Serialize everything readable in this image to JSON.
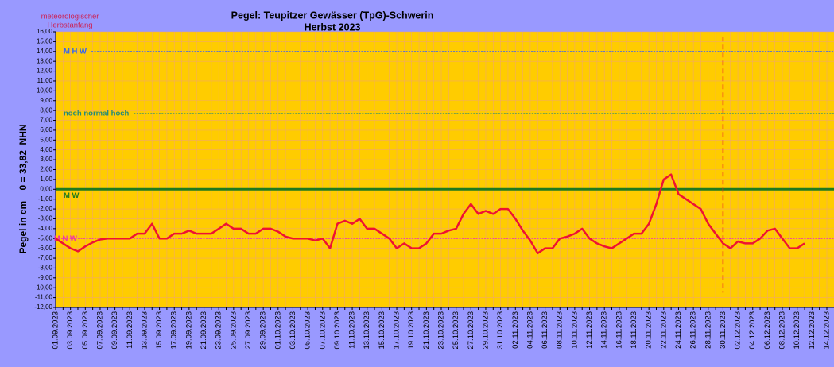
{
  "chart_data": {
    "type": "line",
    "title": "Pegel: Teupitzer Gewässer (TpG)-Schwerin",
    "subtitle": "Herbst 2023",
    "annotation": [
      "meteorologischer",
      "Herbstanfang"
    ],
    "y_label": "Pegel in cm    0 = 33,82  NHN",
    "categories": [
      "01.09.2023",
      null,
      "03.09.2023",
      null,
      "05.09.2023",
      null,
      "07.09.2023",
      null,
      "09.09.2023",
      null,
      "11.09.2023",
      null,
      "13.09.2023",
      null,
      "15.09.2023",
      null,
      "17.09.2023",
      null,
      "19.09.2023",
      null,
      "21.09.2023",
      null,
      "23.09.2023",
      null,
      "25.09.2023",
      null,
      "27.09.2023",
      null,
      "29.09.2023",
      null,
      "01.10.2023",
      null,
      "03.10.2023",
      null,
      "05.10.2023",
      null,
      "07.10.2023",
      null,
      "09.10.2023",
      null,
      "11.10.2023",
      null,
      "13.10.2023",
      null,
      "15.10.2023",
      null,
      "17.10.2023",
      null,
      "19.10.2023",
      null,
      "21.10.2023",
      null,
      "23.10.2023",
      null,
      "25.10.2023",
      null,
      "27.10.2023",
      null,
      "29.10.2023",
      null,
      "31.10.2023",
      null,
      "02.11.2023",
      null,
      "04.11.2023",
      null,
      "06.11.2023",
      null,
      "08.11.2023",
      null,
      "10.11.2023",
      null,
      "12.11.2023",
      null,
      "14.11.2023",
      null,
      "16.11.2023",
      null,
      "18.11.2023",
      null,
      "20.11.2023",
      null,
      "22.11.2023",
      null,
      "24.11.2023",
      null,
      "26.11.2023",
      null,
      "28.11.2023",
      null,
      "30.11.2023",
      null,
      "02.12.2023",
      null,
      "04.12.2023",
      null,
      "06.12.2023",
      null,
      "08.12.2023",
      null,
      "10.12.2023",
      null,
      "12.12.2023",
      null,
      "14.12.2023"
    ],
    "series": [
      {
        "name": "Pegel",
        "color": "#ee1133",
        "values": [
          -5.0,
          -5.5,
          -6.0,
          -6.3,
          -5.8,
          -5.4,
          -5.1,
          -5.0,
          -5.0,
          -5.0,
          -5.0,
          -4.5,
          -4.5,
          -3.5,
          -5.0,
          -5.0,
          -4.5,
          -4.5,
          -4.2,
          -4.5,
          -4.5,
          -4.5,
          -4.0,
          -3.5,
          -4.0,
          -4.0,
          -4.5,
          -4.5,
          -4.0,
          -4.0,
          -4.3,
          -4.8,
          -5.0,
          -5.0,
          -5.0,
          -5.2,
          -5.0,
          -6.0,
          -3.5,
          -3.2,
          -3.5,
          -3.0,
          -4.0,
          -4.0,
          -4.5,
          -5.0,
          -6.0,
          -5.5,
          -6.0,
          -6.0,
          -5.5,
          -4.5,
          -4.5,
          -4.2,
          -4.0,
          -2.5,
          -1.5,
          -2.5,
          -2.2,
          -2.5,
          -2.0,
          -2.0,
          -3.0,
          -4.2,
          -5.2,
          -6.5,
          -6.0,
          -6.0,
          -5.0,
          -4.8,
          -4.5,
          -4.0,
          -5.0,
          -5.5,
          -5.8,
          -6.0,
          -5.5,
          -5.0,
          -4.5,
          -4.5,
          -3.5,
          -1.5,
          1.0,
          1.5,
          -0.5,
          -1.0,
          -1.5,
          -2.0,
          -3.5,
          -4.5,
          -5.5,
          -6.0,
          -5.3,
          -5.5,
          -5.5,
          -5.0,
          -4.2,
          -4.0,
          -5.0,
          -6.0,
          -6.0,
          -5.5,
          null,
          null,
          null
        ]
      }
    ],
    "reference_lines": [
      {
        "label": "M H W",
        "value": 14,
        "color": "#3366ee",
        "style": "dashed"
      },
      {
        "label": "noch  normal  hoch",
        "value": 7.7,
        "color": "#22887a",
        "style": "dashed"
      },
      {
        "label": "M W",
        "value": 0,
        "color": "#1f7a1f",
        "style": "solid"
      },
      {
        "label": "M N W",
        "value": -5,
        "color": "#ee33aa",
        "style": "dashed"
      }
    ],
    "marker_line": {
      "category": "30.11.2023",
      "from": 15.5,
      "to": -10.5,
      "color": "#ee2233"
    },
    "ylim": [
      -12,
      16
    ],
    "yticks": [
      {
        "value": 16,
        "label": "16,00"
      },
      {
        "value": 15,
        "label": "15,00"
      },
      {
        "value": 14,
        "label": "14,00"
      },
      {
        "value": 13,
        "label": "13,00"
      },
      {
        "value": 12,
        "label": "12,00"
      },
      {
        "value": 11,
        "label": "11,00"
      },
      {
        "value": 10,
        "label": "10,00"
      },
      {
        "value": 9,
        "label": "9,00"
      },
      {
        "value": 8,
        "label": "8,00"
      },
      {
        "value": 7,
        "label": "7,00"
      },
      {
        "value": 6,
        "label": "6,00"
      },
      {
        "value": 5,
        "label": "5,00"
      },
      {
        "value": 4,
        "label": "4,00"
      },
      {
        "value": 3,
        "label": "3,00"
      },
      {
        "value": 2,
        "label": "2,00"
      },
      {
        "value": 1,
        "label": "1,00"
      },
      {
        "value": 0,
        "label": "0,00"
      },
      {
        "value": -1,
        "label": "-1,00"
      },
      {
        "value": -2,
        "label": "-2,00"
      },
      {
        "value": -3,
        "label": "-3,00"
      },
      {
        "value": -4,
        "label": "-4,00"
      },
      {
        "value": -5,
        "label": "-5,00"
      },
      {
        "value": -6,
        "label": "-6,00"
      },
      {
        "value": -7,
        "label": "-7,00"
      },
      {
        "value": -8,
        "label": "-8,00"
      },
      {
        "value": -9,
        "label": "-9,00"
      },
      {
        "value": -10,
        "label": "-10,00"
      },
      {
        "value": -11,
        "label": "-11,00"
      },
      {
        "value": -12,
        "label": "-12,00"
      }
    ],
    "grid": true
  }
}
